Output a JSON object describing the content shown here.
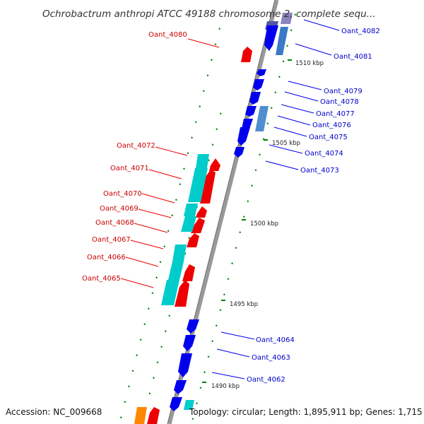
{
  "title": "Ochrobactrum anthropi ATCC 49188 chromosome 2, complete sequ...",
  "accession_text": "Accession: NC_009668",
  "summary_text": "Topology: circular; Length: 1,895,911 bp; Genes: 1,715",
  "scale_labels": [
    "1510 kbp",
    "1505 kbp",
    "1500 kbp",
    "1495 kbp",
    "1490 kbp"
  ],
  "colors": {
    "forward_gene": "#ff0000",
    "reverse_gene": "#0000ff",
    "cds_forward": "#00cccc",
    "cds_reverse": "#4f8fd0",
    "backbone": "#999999",
    "tick": "#008000",
    "label_forward": "#cc0000",
    "label_reverse": "#0000cc"
  },
  "genes_left": [
    {
      "name": "Oant_4080"
    },
    {
      "name": "Oant_4072"
    },
    {
      "name": "Oant_4071"
    },
    {
      "name": "Oant_4070"
    },
    {
      "name": "Oant_4069"
    },
    {
      "name": "Oant_4068"
    },
    {
      "name": "Oant_4067"
    },
    {
      "name": "Oant_4066"
    },
    {
      "name": "Oant_4065"
    }
  ],
  "genes_right": [
    {
      "name": "Oant_4082"
    },
    {
      "name": "Oant_4081"
    },
    {
      "name": "Oant_4079"
    },
    {
      "name": "Oant_4078"
    },
    {
      "name": "Oant_4077"
    },
    {
      "name": "Oant_4076"
    },
    {
      "name": "Oant_4075"
    },
    {
      "name": "Oant_4074"
    },
    {
      "name": "Oant_4073"
    },
    {
      "name": "Oant_4064"
    },
    {
      "name": "Oant_4063"
    },
    {
      "name": "Oant_4062"
    }
  ]
}
